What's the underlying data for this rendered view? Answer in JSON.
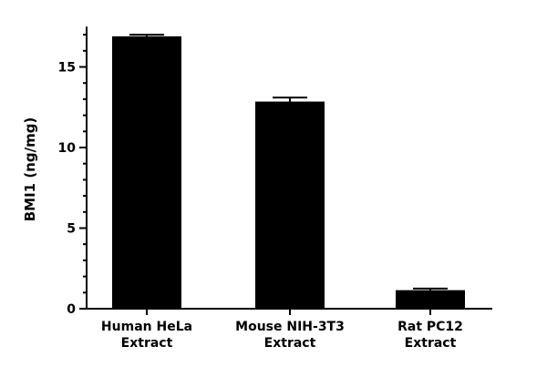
{
  "chart_data": {
    "type": "bar",
    "title": "",
    "xlabel": "",
    "ylabel": "BMI1 (ng/mg)",
    "ylim": [
      0,
      17.5
    ],
    "yticks_major": [
      0,
      5,
      10,
      15
    ],
    "yticks_minor_step": 1,
    "categories": [
      [
        "Human HeLa",
        "Extract"
      ],
      [
        "Mouse NIH-3T3",
        "Extract"
      ],
      [
        "Rat PC12",
        "Extract"
      ]
    ],
    "values": [
      16.9,
      12.85,
      1.15
    ],
    "error_upper": [
      17.0,
      13.1,
      1.25
    ],
    "bar_color": "#000000",
    "grid": false,
    "legend": "none"
  }
}
